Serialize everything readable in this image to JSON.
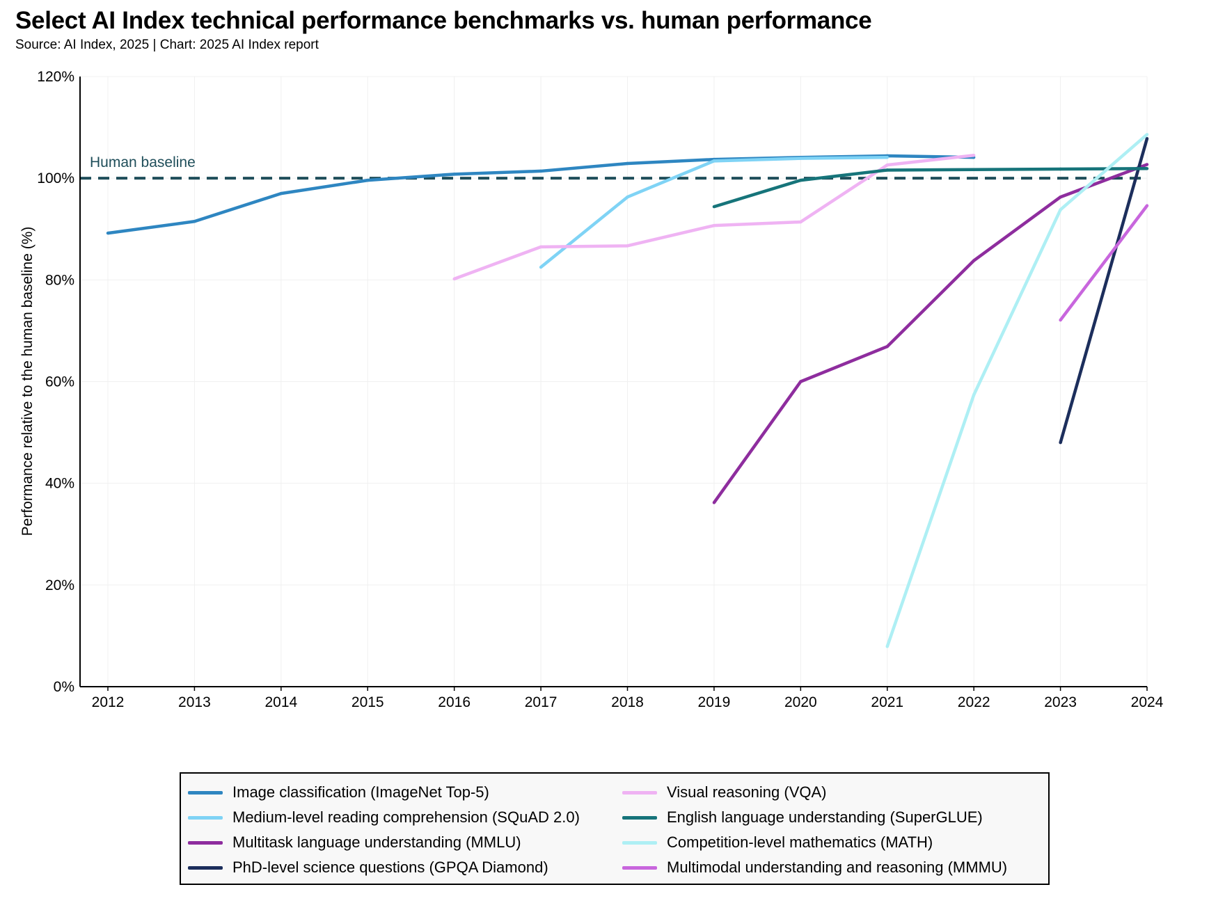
{
  "title": "Select AI Index technical performance benchmarks vs. human performance",
  "subtitle": "Source: AI Index, 2025 | Chart: 2025 AI Index report",
  "chart_data": {
    "type": "line",
    "title": "Select AI Index technical performance benchmarks vs. human performance",
    "xlabel": "",
    "ylabel": "Performance relative to the human baseline (%)",
    "x": [
      2012,
      2013,
      2014,
      2015,
      2016,
      2017,
      2018,
      2019,
      2020,
      2021,
      2022,
      2023,
      2024
    ],
    "x_tick_labels": [
      "2012",
      "2013",
      "2014",
      "2015",
      "2016",
      "2017",
      "2018",
      "2019",
      "2020",
      "2021",
      "2022",
      "2023",
      "2024"
    ],
    "ylim": [
      0,
      120
    ],
    "y_ticks": [
      0,
      20,
      40,
      60,
      80,
      100,
      120
    ],
    "y_tick_labels": [
      "0%",
      "20%",
      "40%",
      "60%",
      "80%",
      "100%",
      "120%"
    ],
    "grid": true,
    "baseline": {
      "label": "Human baseline",
      "value": 100,
      "color": "#1f4e5a"
    },
    "legend_position": "bottom",
    "series": [
      {
        "name": "Image classification (ImageNet Top-5)",
        "color": "#2e86c1",
        "x": [
          2012,
          2013,
          2014,
          2015,
          2016,
          2017,
          2018,
          2019,
          2020,
          2021,
          2022
        ],
        "values": [
          89.2,
          91.5,
          97.0,
          99.6,
          100.8,
          101.4,
          102.9,
          103.7,
          104.1,
          104.4,
          104.1
        ]
      },
      {
        "name": "Medium-level reading comprehension (SQuAD 2.0)",
        "color": "#7fd3f5",
        "x": [
          2017,
          2018,
          2019,
          2020,
          2021
        ],
        "values": [
          82.5,
          96.3,
          103.4,
          103.9,
          104.1
        ]
      },
      {
        "name": "Multitask language understanding (MMLU)",
        "color": "#8e2d9e",
        "x": [
          2019,
          2020,
          2021,
          2022,
          2023,
          2024
        ],
        "values": [
          36.2,
          60.0,
          66.9,
          83.8,
          96.3,
          102.7
        ]
      },
      {
        "name": "PhD-level science questions (GPQA Diamond)",
        "color": "#1c2e5c",
        "x": [
          2023,
          2024
        ],
        "values": [
          48.0,
          107.8
        ]
      },
      {
        "name": "Visual reasoning (VQA)",
        "color": "#efb3f3",
        "x": [
          2016,
          2017,
          2018,
          2019,
          2020,
          2021,
          2022
        ],
        "values": [
          80.2,
          86.5,
          86.7,
          90.7,
          91.4,
          102.6,
          104.5
        ]
      },
      {
        "name": "English language understanding (SuperGLUE)",
        "color": "#16747a",
        "x": [
          2019,
          2020,
          2021,
          2022,
          2023,
          2024
        ],
        "values": [
          94.4,
          99.6,
          101.6,
          101.7,
          101.8,
          101.9
        ]
      },
      {
        "name": "Competition-level mathematics (MATH)",
        "color": "#aeeff4",
        "x": [
          2021,
          2022,
          2023,
          2024
        ],
        "values": [
          7.9,
          57.4,
          93.8,
          108.6
        ]
      },
      {
        "name": "Multimodal understanding and reasoning (MMMU)",
        "color": "#c866dd",
        "x": [
          2023,
          2024
        ],
        "values": [
          72.1,
          94.6
        ]
      }
    ]
  }
}
